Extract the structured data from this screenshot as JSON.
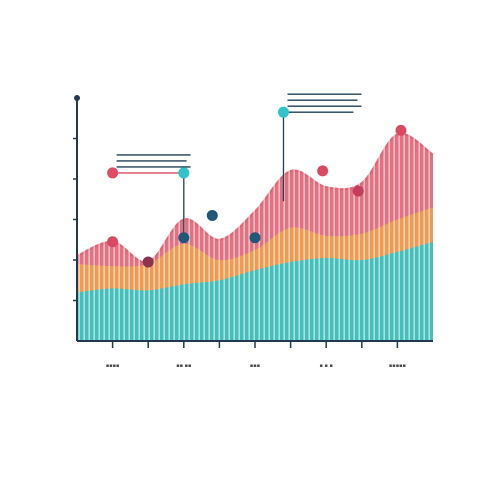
{
  "chart_data": {
    "type": "area",
    "title": "",
    "xlabel": "",
    "ylabel": "",
    "x": [
      0,
      1,
      2,
      3,
      4,
      5,
      6,
      7,
      8,
      9,
      10
    ],
    "xlim": [
      0,
      10
    ],
    "ylim": [
      0,
      6
    ],
    "grid": false,
    "legend": "none",
    "x_tick_labels": [
      "▪▪▪▪",
      "▪▪ ▪▪",
      "▪▪▪",
      "▪ ▪ ▪",
      "▪▪▪▪▪"
    ],
    "series": [
      {
        "values": [
          1.2,
          1.3,
          1.25,
          1.4,
          1.5,
          1.75,
          1.95,
          2.05,
          2.0,
          2.2,
          2.45
        ],
        "color": "#2ec4c9"
      },
      {
        "values": [
          1.9,
          1.85,
          1.9,
          2.4,
          2.0,
          2.25,
          2.8,
          2.6,
          2.65,
          3.0,
          3.3
        ],
        "color": "#f0a04b"
      },
      {
        "values": [
          2.1,
          2.45,
          1.95,
          3.0,
          2.5,
          3.2,
          4.2,
          3.8,
          3.9,
          5.1,
          4.6
        ],
        "color": "#e05d6f"
      }
    ],
    "markers": [
      {
        "x": 1.0,
        "y": 2.45,
        "color": "#d94a62"
      },
      {
        "x": 2.0,
        "y": 1.95,
        "color": "#8a3450"
      },
      {
        "x": 3.0,
        "y": 2.55,
        "color": "#1f5878"
      },
      {
        "x": 3.8,
        "y": 3.1,
        "color": "#1f5878"
      },
      {
        "x": 5.0,
        "y": 2.55,
        "color": "#1f5878"
      },
      {
        "x": 6.9,
        "y": 4.2,
        "color": "#d94a62"
      },
      {
        "x": 7.9,
        "y": 3.7,
        "color": "#c43e5c"
      },
      {
        "x": 9.1,
        "y": 5.2,
        "color": "#d94a62"
      }
    ],
    "callouts": [
      {
        "x": 1.0,
        "y": 4.15,
        "color": "#e24a66",
        "line_color": "#d94a62",
        "dir": "right",
        "anchor_y": 4.15,
        "bars": 3
      },
      {
        "x": 3.0,
        "y": 4.15,
        "color": "#2ec4c9",
        "line_color": "#1f3f55",
        "dir": "none",
        "anchor_y": 2.6,
        "bars": 0
      },
      {
        "x": 5.8,
        "y": 5.65,
        "color": "#2ec4c9",
        "line_color": "#1f3f55",
        "dir": "right",
        "anchor_y": 3.45,
        "bars": 3
      }
    ],
    "colors": {
      "axis": "#1f3a52",
      "background": "#ffffff"
    }
  }
}
